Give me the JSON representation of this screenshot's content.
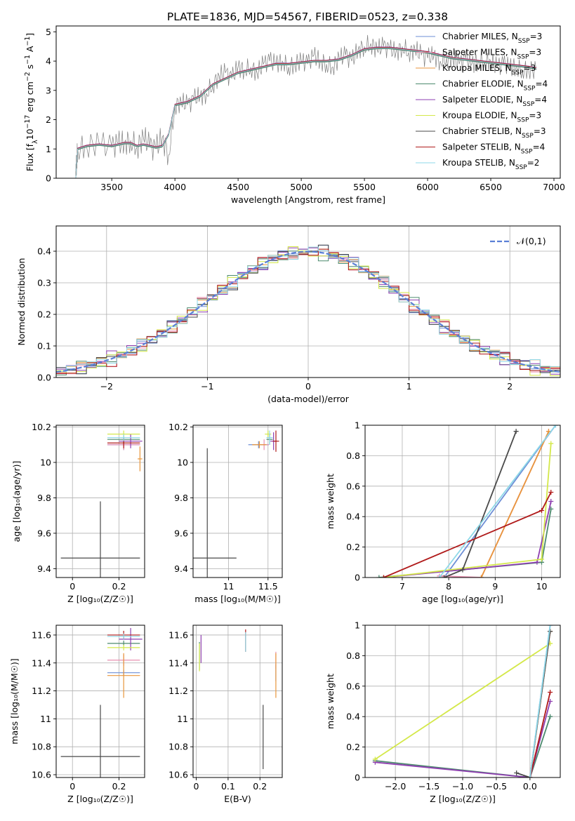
{
  "chart_data": [
    {
      "id": "spectrum",
      "type": "line",
      "title": "PLATE=1836, MJD=54567, FIBERID=0523, z=0.338",
      "xlabel": "wavelength [Angstrom, rest frame]",
      "ylabel_parts": {
        "a": "Flux [f",
        "sub": "λ",
        "b": "10",
        "sup1": "−17",
        "c": " erg cm",
        "sup2": "−2",
        "d": " s",
        "sup3": "−1",
        "e": " A",
        "sup4": "−1",
        "f": "]"
      },
      "xlim": [
        3060,
        7050
      ],
      "ylim": [
        0,
        5.2
      ],
      "xticks": [
        3500,
        4000,
        4500,
        5000,
        5500,
        6000,
        6500,
        7000
      ],
      "yticks": [
        0,
        1,
        2,
        3,
        4,
        5
      ],
      "legend_position": "top-right",
      "data_series": {
        "name": "data",
        "color": "#808080",
        "x": [
          3215,
          3222,
          3230,
          3300,
          3400,
          3500,
          3550,
          3600,
          3650,
          3700,
          3750,
          3800,
          3850,
          3900,
          3950,
          4000,
          4050,
          4100,
          4150,
          4200,
          4250,
          4300,
          4350,
          4400,
          4450,
          4500,
          4550,
          4600,
          4650,
          4700,
          4750,
          4800,
          4850,
          4900,
          4950,
          5000,
          5050,
          5100,
          5150,
          5200,
          5250,
          5300,
          5350,
          5400,
          5450,
          5500,
          5550,
          5600,
          5650,
          5700,
          5750,
          5800,
          5850,
          5900,
          5950,
          6000,
          6050,
          6100,
          6150,
          6200,
          6250,
          6300,
          6350,
          6400,
          6450,
          6500,
          6550,
          6600,
          6650,
          6700,
          6750,
          6800,
          6860
        ],
        "y": [
          0,
          0.6,
          1.0,
          1.1,
          1.2,
          1.05,
          1.2,
          1.2,
          1.3,
          1.05,
          1.4,
          1.1,
          1.0,
          1.4,
          0.8,
          2.5,
          2.6,
          2.5,
          2.7,
          2.8,
          2.9,
          3.2,
          3.5,
          3.6,
          3.4,
          3.8,
          3.7,
          3.8,
          3.6,
          3.9,
          4.0,
          3.9,
          4.0,
          3.8,
          3.9,
          4.0,
          3.9,
          4.2,
          4.0,
          3.9,
          3.8,
          4.1,
          4.2,
          4.0,
          4.4,
          4.5,
          4.6,
          4.4,
          4.5,
          4.4,
          4.3,
          4.5,
          4.3,
          4.4,
          4.2,
          4.1,
          4.2,
          4.0,
          4.1,
          4.1,
          3.9,
          4.1,
          3.9,
          4.0,
          4.0,
          4.0,
          3.8,
          3.9,
          3.8,
          3.8,
          3.7,
          3.7,
          3.7
        ]
      },
      "model_curve": {
        "x": [
          3215,
          3222,
          3230,
          3300,
          3400,
          3500,
          3550,
          3600,
          3650,
          3700,
          3750,
          3800,
          3850,
          3900,
          3950,
          4000,
          4100,
          4200,
          4300,
          4400,
          4500,
          4600,
          4700,
          4800,
          4900,
          5000,
          5100,
          5200,
          5300,
          5400,
          5500,
          5600,
          5700,
          5800,
          5900,
          6000,
          6100,
          6200,
          6300,
          6400,
          6500,
          6600,
          6700,
          6800,
          6860
        ],
        "y": [
          0,
          0.6,
          1.0,
          1.1,
          1.15,
          1.1,
          1.15,
          1.2,
          1.2,
          1.1,
          1.15,
          1.1,
          1.05,
          1.1,
          1.5,
          2.5,
          2.6,
          2.8,
          3.2,
          3.4,
          3.6,
          3.7,
          3.8,
          3.9,
          3.9,
          3.95,
          4.0,
          4.0,
          4.05,
          4.2,
          4.4,
          4.45,
          4.45,
          4.4,
          4.35,
          4.3,
          4.2,
          4.1,
          4.05,
          4.0,
          3.95,
          3.9,
          3.85,
          3.8,
          3.75
        ]
      },
      "model_offsets": [
        0.02,
        -0.02,
        0.01,
        -0.03,
        0.03,
        0.0,
        -0.01,
        0.02,
        0.0
      ],
      "series": [
        {
          "name_parts": {
            "a": "Chabrier MILES, N",
            "sub": "SSP",
            "b": "=3"
          },
          "color": "#6e8fd6"
        },
        {
          "name_parts": {
            "a": "Salpeter MILES, N",
            "sub": "SSP",
            "b": "=3"
          },
          "color": "#e98fb0"
        },
        {
          "name_parts": {
            "a": "Kroupa MILES, N",
            "sub": "SSP",
            "b": "=3"
          },
          "color": "#e8963c"
        },
        {
          "name_parts": {
            "a": "Chabrier ELODIE, N",
            "sub": "SSP",
            "b": "=4"
          },
          "color": "#4c8a6e"
        },
        {
          "name_parts": {
            "a": "Salpeter ELODIE, N",
            "sub": "SSP",
            "b": "=4"
          },
          "color": "#8e3fb0"
        },
        {
          "name_parts": {
            "a": "Kroupa ELODIE, N",
            "sub": "SSP",
            "b": "=3"
          },
          "color": "#d4e84a"
        },
        {
          "name_parts": {
            "a": "Chabrier STELIB, N",
            "sub": "SSP",
            "b": "=3"
          },
          "color": "#4a4a4a"
        },
        {
          "name_parts": {
            "a": "Salpeter STELIB, N",
            "sub": "SSP",
            "b": "=4"
          },
          "color": "#b01a1a"
        },
        {
          "name_parts": {
            "a": "Kroupa STELIB, N",
            "sub": "SSP",
            "b": "=2"
          },
          "color": "#8ed8e8"
        }
      ]
    },
    {
      "id": "residuals",
      "type": "histogram",
      "xlabel": "(data-model)/error",
      "ylabel": "Normed distribution",
      "xlim": [
        -2.5,
        2.5
      ],
      "ylim": [
        0,
        0.48
      ],
      "xticks": [
        -2,
        -1,
        0,
        1,
        2
      ],
      "xtick_labels": [
        "−2",
        "−1",
        "0",
        "1",
        "2"
      ],
      "yticks": [
        0.0,
        0.1,
        0.2,
        0.3,
        0.4
      ],
      "ytick_labels": [
        "0.0",
        "0.1",
        "0.2",
        "0.3",
        "0.4"
      ],
      "grid": true,
      "legend_position": "top-right",
      "legend_label": "𝒩(0,1)",
      "gaussian": {
        "mean": 0,
        "sigma": 1,
        "color": "#5b7fd6",
        "style": "dashed"
      },
      "bin_width": 0.1,
      "bin_start": -2.5,
      "bin_jitter": [
        0.012,
        -0.015,
        0.02,
        -0.01,
        0.015,
        -0.02,
        0.008,
        -0.012,
        0.025
      ]
    },
    {
      "id": "age-vs-Z",
      "type": "scatter",
      "xlabel": "Z [log₁₀(Z/Z☉)]",
      "ylabel": "age  [log₁₀(age/yr)]",
      "xlim": [
        -0.07,
        0.31
      ],
      "ylim": [
        9.35,
        10.21
      ],
      "xticks": [
        0.0,
        0.2
      ],
      "yticks": [
        9.4,
        9.6,
        9.8,
        10.0,
        10.2
      ],
      "points": [
        {
          "x": 0.22,
          "y": 10.1,
          "xerr": 0.07,
          "yerr": 0.03
        },
        {
          "x": 0.22,
          "y": 10.1,
          "xerr": 0.07,
          "yerr": 0.03
        },
        {
          "x": 0.29,
          "y": 10.02,
          "xerr": 0.01,
          "yerr": 0.07
        },
        {
          "x": 0.22,
          "y": 10.13,
          "xerr": 0.07,
          "yerr": 0.02
        },
        {
          "x": 0.25,
          "y": 10.12,
          "xerr": 0.05,
          "yerr": 0.04
        },
        {
          "x": 0.22,
          "y": 10.16,
          "xerr": 0.07,
          "yerr": 0.02
        },
        {
          "x": 0.12,
          "y": 9.46,
          "xerr": 0.17,
          "yerr": 0.32
        },
        {
          "x": 0.22,
          "y": 10.11,
          "xerr": 0.07,
          "yerr": 0.03
        },
        {
          "x": 0.22,
          "y": 10.14,
          "xerr": 0.07,
          "yerr": 0.02
        }
      ]
    },
    {
      "id": "age-vs-mass",
      "type": "scatter",
      "xlabel": "mass [log₁₀(M/M☉)]",
      "ylabel": "",
      "xlim": [
        10.55,
        11.68
      ],
      "ylim": [
        9.35,
        10.21
      ],
      "xticks": [
        11.0,
        11.5
      ],
      "yticks": [
        9.4,
        9.6,
        9.8,
        10.0,
        10.2
      ],
      "points": [
        {
          "x": 11.38,
          "y": 10.1,
          "xerr": 0.13,
          "yerr": 0.02
        },
        {
          "x": 11.45,
          "y": 10.1,
          "xerr": 0.06,
          "yerr": 0.03
        },
        {
          "x": 11.39,
          "y": 10.1,
          "xerr": 0.09,
          "yerr": 0.02
        },
        {
          "x": 11.52,
          "y": 10.13,
          "xerr": 0.04,
          "yerr": 0.03
        },
        {
          "x": 11.57,
          "y": 10.12,
          "xerr": 0.04,
          "yerr": 0.05
        },
        {
          "x": 11.5,
          "y": 10.16,
          "xerr": 0.04,
          "yerr": 0.02
        },
        {
          "x": 10.73,
          "y": 9.46,
          "xerr": 0.37,
          "yerr": 0.62
        },
        {
          "x": 11.6,
          "y": 10.12,
          "xerr": 0.04,
          "yerr": 0.06
        },
        {
          "x": 11.52,
          "y": 10.14,
          "xerr": 0.04,
          "yerr": 0.04
        }
      ]
    },
    {
      "id": "weight-vs-age",
      "type": "line",
      "xlabel": "age  [log₁₀(age/yr)]",
      "ylabel": "mass weight",
      "xlim": [
        6.2,
        10.4
      ],
      "ylim": [
        0,
        1.0
      ],
      "xticks": [
        7,
        8,
        9,
        10
      ],
      "yticks": [
        0.0,
        0.2,
        0.4,
        0.6,
        0.8,
        1.0
      ],
      "series_points": [
        {
          "x": [
            7.9,
            10.3
          ],
          "y": [
            0.0,
            1.0
          ]
        },
        {
          "x": [
            7.8,
            8.7,
            10.15
          ],
          "y": [
            0.01,
            0.0,
            0.96
          ]
        },
        {
          "x": [
            8.7,
            10.15
          ],
          "y": [
            0.0,
            0.96
          ]
        },
        {
          "x": [
            6.5,
            10.0,
            10.2
          ],
          "y": [
            0.0,
            0.1,
            0.45
          ]
        },
        {
          "x": [
            6.6,
            9.9,
            10.2
          ],
          "y": [
            0.0,
            0.1,
            0.5
          ]
        },
        {
          "x": [
            6.6,
            10.0,
            10.2
          ],
          "y": [
            0.0,
            0.12,
            0.88
          ]
        },
        {
          "x": [
            7.9,
            8.3,
            9.45
          ],
          "y": [
            0.0,
            0.05,
            0.96
          ]
        },
        {
          "x": [
            6.6,
            10.0,
            10.2
          ],
          "y": [
            0.0,
            0.44,
            0.56
          ]
        },
        {
          "x": [
            7.8,
            10.3
          ],
          "y": [
            0.0,
            1.0
          ]
        }
      ]
    },
    {
      "id": "mass-vs-Z",
      "type": "scatter",
      "xlabel": "Z [log₁₀(Z/Z☉)]",
      "ylabel": "mass [log₁₀(M/M☉)]",
      "xlim": [
        -0.07,
        0.31
      ],
      "ylim": [
        10.58,
        11.67
      ],
      "xticks": [
        0.0,
        0.2
      ],
      "yticks": [
        10.6,
        10.8,
        11.0,
        11.2,
        11.4,
        11.6
      ],
      "points": [
        {
          "x": 0.22,
          "y": 11.33,
          "xerr": 0.07,
          "yerr": 0.02
        },
        {
          "x": 0.22,
          "y": 11.42,
          "xerr": 0.07,
          "yerr": 0.04
        },
        {
          "x": 0.22,
          "y": 11.31,
          "xerr": 0.07,
          "yerr": 0.16
        },
        {
          "x": 0.22,
          "y": 11.54,
          "xerr": 0.07,
          "yerr": 0.02
        },
        {
          "x": 0.25,
          "y": 11.57,
          "xerr": 0.05,
          "yerr": 0.08
        },
        {
          "x": 0.22,
          "y": 11.51,
          "xerr": 0.07,
          "yerr": 0.02
        },
        {
          "x": 0.12,
          "y": 10.73,
          "xerr": 0.17,
          "yerr": 0.37
        },
        {
          "x": 0.22,
          "y": 11.6,
          "xerr": 0.07,
          "yerr": 0.03
        },
        {
          "x": 0.22,
          "y": 11.59,
          "xerr": 0.07,
          "yerr": 0.02
        }
      ]
    },
    {
      "id": "mass-vs-EBV",
      "type": "scatter",
      "xlabel": "E(B-V)",
      "ylabel": "",
      "xlim": [
        -0.01,
        0.27
      ],
      "ylim": [
        10.58,
        11.67
      ],
      "xticks": [
        0.0,
        0.1,
        0.2
      ],
      "yticks": [
        10.6,
        10.8,
        11.0,
        11.2,
        11.4,
        11.6
      ],
      "points": [
        {
          "x": 0.25,
          "y": 11.33,
          "xerr": 0.0,
          "yerr": 0.06
        },
        {
          "x": 0.25,
          "y": 11.42,
          "xerr": 0.0,
          "yerr": 0.06
        },
        {
          "x": 0.25,
          "y": 11.31,
          "xerr": 0.0,
          "yerr": 0.16
        },
        {
          "x": 0.01,
          "y": 11.45,
          "xerr": 0.0,
          "yerr": 0.1
        },
        {
          "x": 0.015,
          "y": 11.5,
          "xerr": 0.0,
          "yerr": 0.1
        },
        {
          "x": 0.01,
          "y": 11.44,
          "xerr": 0.0,
          "yerr": 0.1
        },
        {
          "x": 0.21,
          "y": 10.87,
          "xerr": 0.0,
          "yerr": 0.23
        },
        {
          "x": 0.155,
          "y": 11.56,
          "xerr": 0.0,
          "yerr": 0.08
        },
        {
          "x": 0.155,
          "y": 11.55,
          "xerr": 0.0,
          "yerr": 0.07
        }
      ]
    },
    {
      "id": "weight-vs-Z",
      "type": "line",
      "xlabel": "Z [log₁₀(Z/Z☉)]",
      "ylabel": "mass weight",
      "xlim": [
        -2.45,
        0.45
      ],
      "ylim": [
        0,
        1.0
      ],
      "xticks": [
        -2.0,
        -1.5,
        -1.0,
        -0.5,
        0.0
      ],
      "xtick_labels": [
        "−2.0",
        "−1.5",
        "−1.0",
        "−0.5",
        "0.0"
      ],
      "yticks": [
        0.0,
        0.2,
        0.4,
        0.6,
        0.8,
        1.0
      ],
      "series_points": [
        {
          "x": [
            0.0,
            0.3
          ],
          "y": [
            0.0,
            1.0
          ]
        },
        {
          "x": [
            0.0,
            0.3
          ],
          "y": [
            0.0,
            0.96
          ]
        },
        {
          "x": [
            0.0,
            0.3
          ],
          "y": [
            0.0,
            0.96
          ]
        },
        {
          "x": [
            -2.3,
            0.0,
            0.3
          ],
          "y": [
            0.11,
            0.0,
            0.4
          ]
        },
        {
          "x": [
            -2.3,
            0.0,
            0.3
          ],
          "y": [
            0.1,
            0.0,
            0.5
          ]
        },
        {
          "x": [
            -2.3,
            0.3
          ],
          "y": [
            0.12,
            0.88
          ]
        },
        {
          "x": [
            -0.2,
            0.0,
            0.3
          ],
          "y": [
            0.03,
            0.0,
            0.96
          ]
        },
        {
          "x": [
            0.0,
            0.3
          ],
          "y": [
            0.0,
            0.56
          ]
        },
        {
          "x": [
            0.0,
            0.3
          ],
          "y": [
            0.0,
            1.0
          ]
        }
      ]
    }
  ]
}
